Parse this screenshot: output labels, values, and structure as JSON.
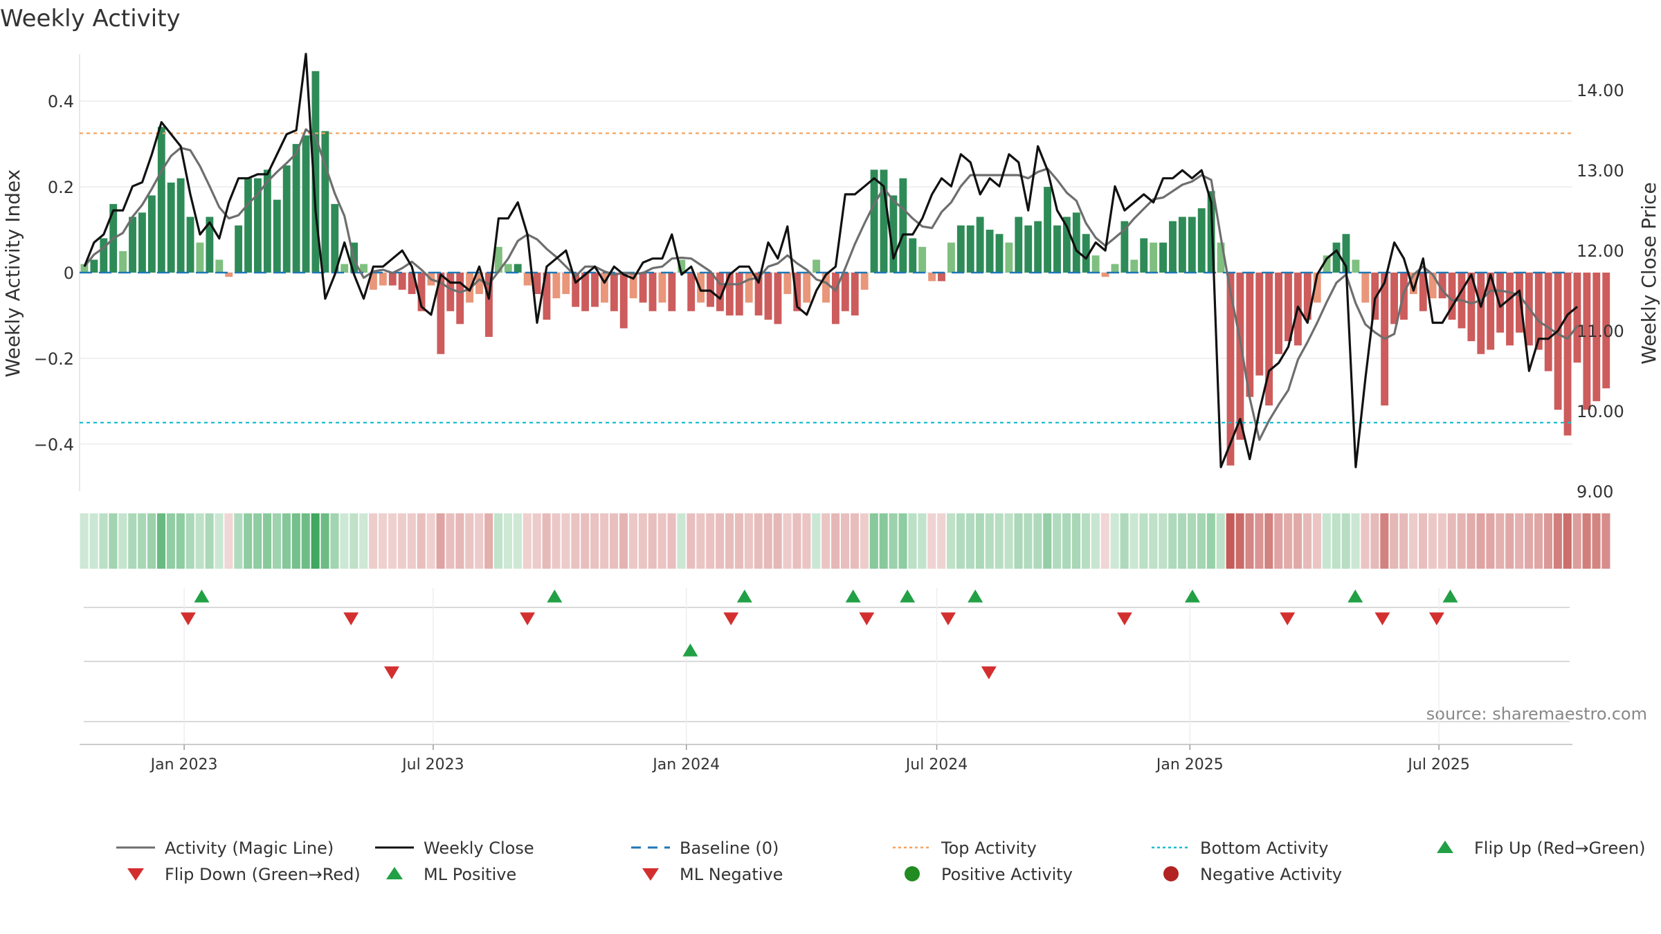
{
  "chart_data": {
    "type": "bar",
    "title": "Weekly Activity",
    "ylabel_left": "Weekly Activity Index",
    "ylabel_right": "Weekly Close Price",
    "ylim_left": [
      -0.51,
      0.51
    ],
    "ylim_right": [
      9.0,
      14.45
    ],
    "yticks_left": [
      0.4,
      0.2,
      0,
      -0.2,
      -0.4
    ],
    "ytick_labels_left": [
      "0.4",
      "0.2",
      "0",
      "−0.2",
      "−0.4"
    ],
    "yticks_right": [
      14.0,
      13.0,
      12.0,
      11.0,
      10.0,
      9.0
    ],
    "ytick_labels_right": [
      "14.00",
      "13.00",
      "12.00",
      "11.00",
      "10.00",
      "9.00"
    ],
    "x_start": "2022-10-17",
    "x_end": "2025-10-06",
    "xticks": [
      "2023-01-01",
      "2023-07-01",
      "2024-01-01",
      "2024-07-01",
      "2025-01-01",
      "2025-07-01"
    ],
    "xtick_labels": [
      "Jan 2023",
      "Jul 2023",
      "Jan 2024",
      "Jul 2024",
      "Jan 2025",
      "Jul 2025"
    ],
    "top_activity": 0.325,
    "bottom_activity": -0.35,
    "baseline": 0,
    "grid": true,
    "legend_position": "bottom",
    "colors": {
      "pos_strong": "#2e8b57",
      "pos_light": "#7fbf7f",
      "neg_strong": "#cd5c5c",
      "neg_light": "#e9967a",
      "magic_line": "#6e6e6e",
      "close_line": "#111111",
      "baseline": "#1f77b4",
      "top": "#f4a460",
      "bottom": "#17becf",
      "marker_up": "#22a045",
      "marker_down": "#d32f2f",
      "dot_positive": "#228b22",
      "dot_negative": "#b22222"
    },
    "activity": [
      0.02,
      0.03,
      0.08,
      0.16,
      0.05,
      0.13,
      0.14,
      0.18,
      0.34,
      0.21,
      0.22,
      0.13,
      0.07,
      0.13,
      0.03,
      -0.01,
      0.11,
      0.22,
      0.22,
      0.24,
      0.17,
      0.25,
      0.3,
      0.32,
      0.47,
      0.33,
      0.16,
      0.02,
      0.07,
      0.02,
      -0.04,
      -0.03,
      -0.03,
      -0.04,
      -0.05,
      -0.09,
      -0.03,
      -0.19,
      -0.09,
      -0.12,
      -0.07,
      -0.05,
      -0.15,
      0.06,
      0.02,
      0.02,
      -0.03,
      -0.05,
      -0.11,
      -0.06,
      -0.05,
      -0.08,
      -0.09,
      -0.08,
      -0.07,
      -0.09,
      -0.13,
      -0.06,
      -0.07,
      -0.09,
      -0.07,
      -0.09,
      0.03,
      -0.09,
      -0.07,
      -0.08,
      -0.09,
      -0.1,
      -0.1,
      -0.07,
      -0.1,
      -0.11,
      -0.12,
      -0.05,
      -0.09,
      -0.07,
      0.03,
      -0.07,
      -0.12,
      -0.09,
      -0.1,
      -0.04,
      0.24,
      0.24,
      0.18,
      0.22,
      0.08,
      0.06,
      -0.02,
      -0.02,
      0.07,
      0.11,
      0.11,
      0.13,
      0.1,
      0.09,
      0.07,
      0.13,
      0.11,
      0.12,
      0.2,
      0.11,
      0.13,
      0.14,
      0.09,
      0.04,
      -0.01,
      0.02,
      0.12,
      0.03,
      0.08,
      0.07,
      0.07,
      0.12,
      0.13,
      0.13,
      0.15,
      0.19,
      0.07,
      -0.45,
      -0.39,
      -0.29,
      -0.24,
      -0.31,
      -0.19,
      -0.16,
      -0.17,
      -0.11,
      -0.07,
      0.04,
      0.07,
      0.09,
      0.03,
      -0.07,
      -0.11,
      -0.31,
      -0.12,
      -0.11,
      -0.05,
      -0.09,
      -0.06,
      -0.06,
      -0.11,
      -0.13,
      -0.16,
      -0.19,
      -0.18,
      -0.14,
      -0.17,
      -0.14,
      -0.17,
      -0.18,
      -0.23,
      -0.32,
      -0.38,
      -0.21,
      -0.32,
      -0.3,
      -0.27
    ],
    "weekly_close": [
      11.8,
      12.1,
      12.2,
      12.5,
      12.5,
      12.8,
      12.85,
      13.2,
      13.6,
      13.45,
      13.3,
      12.7,
      12.2,
      12.35,
      12.15,
      12.6,
      12.9,
      12.9,
      12.95,
      12.95,
      13.2,
      13.45,
      13.5,
      14.45,
      12.5,
      11.4,
      11.7,
      12.1,
      11.7,
      11.4,
      11.8,
      11.8,
      11.9,
      12.0,
      11.8,
      11.3,
      11.2,
      11.7,
      11.6,
      11.6,
      11.5,
      11.8,
      11.4,
      12.4,
      12.4,
      12.6,
      12.2,
      11.1,
      11.8,
      11.9,
      12.0,
      11.6,
      11.7,
      11.8,
      11.6,
      11.8,
      11.7,
      11.65,
      11.85,
      11.9,
      11.9,
      12.2,
      11.7,
      11.8,
      11.5,
      11.5,
      11.4,
      11.7,
      11.8,
      11.8,
      11.6,
      12.1,
      11.9,
      12.3,
      11.3,
      11.2,
      11.5,
      11.7,
      11.8,
      12.7,
      12.7,
      12.8,
      12.9,
      12.8,
      11.9,
      12.2,
      12.2,
      12.4,
      12.7,
      12.9,
      12.8,
      13.2,
      13.1,
      12.7,
      12.9,
      12.8,
      13.2,
      13.1,
      12.5,
      13.3,
      13.0,
      12.5,
      12.3,
      12.0,
      11.9,
      12.1,
      12.0,
      12.8,
      12.5,
      12.6,
      12.7,
      12.6,
      12.9,
      12.9,
      13.0,
      12.9,
      13.0,
      12.6,
      9.3,
      9.6,
      9.9,
      9.4,
      10.0,
      10.5,
      10.6,
      10.8,
      11.3,
      11.1,
      11.7,
      11.9,
      12.0,
      11.8,
      9.3,
      10.4,
      11.4,
      11.6,
      12.1,
      11.9,
      11.5,
      11.9,
      11.1,
      11.1,
      11.3,
      11.5,
      11.7,
      11.3,
      11.7,
      11.3,
      11.4,
      11.5,
      10.5,
      10.9,
      10.9,
      11.0,
      11.2,
      11.3
    ],
    "flip_up_weeks": [
      9,
      35,
      49,
      57,
      61,
      66,
      82,
      94,
      101
    ],
    "flip_down_weeks": [
      8,
      20,
      33,
      48,
      58,
      64,
      77,
      89,
      96,
      100
    ],
    "ml_positive_weeks": [
      45
    ],
    "ml_negative_weeks": [
      23,
      67
    ],
    "source": "source: sharemaestro.com",
    "legend": [
      {
        "label": "Activity (Magic Line)",
        "kind": "line-solid-grey"
      },
      {
        "label": "Weekly Close",
        "kind": "line-solid-black"
      },
      {
        "label": "Baseline (0)",
        "kind": "line-dashed-blue"
      },
      {
        "label": "Top Activity",
        "kind": "line-dotted-orange"
      },
      {
        "label": "Bottom Activity",
        "kind": "line-dotted-cyan"
      },
      {
        "label": "Flip Up (Red→Green)",
        "kind": "triangle-up-green"
      },
      {
        "label": "Flip Down (Green→Red)",
        "kind": "triangle-down-red"
      },
      {
        "label": "ML Positive",
        "kind": "triangle-up-green"
      },
      {
        "label": "ML Negative",
        "kind": "triangle-down-red"
      },
      {
        "label": "Positive Activity",
        "kind": "dot-green"
      },
      {
        "label": "Negative Activity",
        "kind": "dot-red"
      }
    ]
  }
}
